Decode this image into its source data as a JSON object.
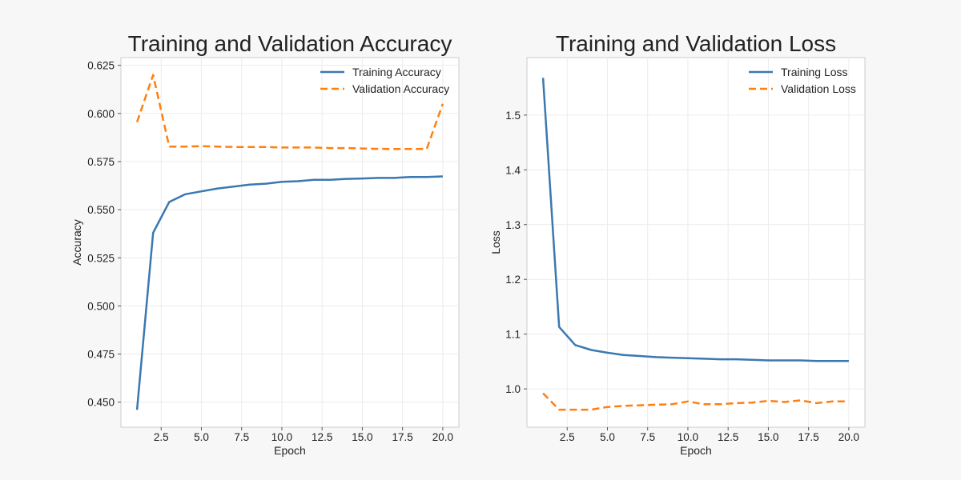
{
  "chart_data": [
    {
      "type": "line",
      "title": "Training and Validation Accuracy",
      "xlabel": "Epoch",
      "ylabel": "Accuracy",
      "xlim": [
        0,
        21
      ],
      "ylim": [
        0.437,
        0.629
      ],
      "xticks": [
        2.5,
        5.0,
        7.5,
        10.0,
        12.5,
        15.0,
        17.5,
        20.0
      ],
      "xtick_labels": [
        "2.5",
        "5.0",
        "7.5",
        "10.0",
        "12.5",
        "15.0",
        "17.5",
        "20.0"
      ],
      "yticks": [
        0.45,
        0.475,
        0.5,
        0.525,
        0.55,
        0.575,
        0.6,
        0.625
      ],
      "ytick_labels": [
        "0.450",
        "0.475",
        "0.500",
        "0.525",
        "0.550",
        "0.575",
        "0.600",
        "0.625"
      ],
      "grid": true,
      "legend_position": "top-right",
      "x": [
        1,
        2,
        3,
        4,
        5,
        6,
        7,
        8,
        9,
        10,
        11,
        12,
        13,
        14,
        15,
        16,
        17,
        18,
        19,
        20
      ],
      "series": [
        {
          "name": "Training Accuracy",
          "color": "#3a78b0",
          "dash": "solid",
          "values": [
            0.446,
            0.538,
            0.554,
            0.558,
            0.5595,
            0.561,
            0.562,
            0.563,
            0.5635,
            0.5645,
            0.5648,
            0.5655,
            0.5655,
            0.566,
            0.5662,
            0.5665,
            0.5665,
            0.567,
            0.567,
            0.5673
          ]
        },
        {
          "name": "Validation Accuracy",
          "color": "#ff7f0e",
          "dash": "dashed",
          "values": [
            0.5955,
            0.62,
            0.5828,
            0.5828,
            0.583,
            0.5828,
            0.5826,
            0.5826,
            0.5826,
            0.5823,
            0.5823,
            0.5823,
            0.582,
            0.582,
            0.5818,
            0.5816,
            0.5815,
            0.5815,
            0.5815,
            0.605
          ]
        }
      ]
    },
    {
      "type": "line",
      "title": "Training and Validation Loss",
      "xlabel": "Epoch",
      "ylabel": "Loss",
      "xlim": [
        0,
        21
      ],
      "ylim": [
        0.93,
        1.605
      ],
      "xticks": [
        2.5,
        5.0,
        7.5,
        10.0,
        12.5,
        15.0,
        17.5,
        20.0
      ],
      "xtick_labels": [
        "2.5",
        "5.0",
        "7.5",
        "10.0",
        "12.5",
        "15.0",
        "17.5",
        "20.0"
      ],
      "yticks": [
        1.0,
        1.1,
        1.2,
        1.3,
        1.4,
        1.5
      ],
      "ytick_labels": [
        "1.0",
        "1.1",
        "1.2",
        "1.3",
        "1.4",
        "1.5"
      ],
      "grid": true,
      "legend_position": "top-right",
      "x": [
        1,
        2,
        3,
        4,
        5,
        6,
        7,
        8,
        9,
        10,
        11,
        12,
        13,
        14,
        15,
        16,
        17,
        18,
        19,
        20
      ],
      "series": [
        {
          "name": "Training Loss",
          "color": "#3a78b0",
          "dash": "solid",
          "values": [
            1.568,
            1.113,
            1.08,
            1.071,
            1.066,
            1.062,
            1.06,
            1.058,
            1.057,
            1.056,
            1.055,
            1.054,
            1.054,
            1.053,
            1.052,
            1.052,
            1.052,
            1.051,
            1.051,
            1.051
          ]
        },
        {
          "name": "Validation Loss",
          "color": "#ff7f0e",
          "dash": "dashed",
          "values": [
            0.992,
            0.962,
            0.962,
            0.962,
            0.967,
            0.969,
            0.97,
            0.971,
            0.972,
            0.977,
            0.972,
            0.972,
            0.974,
            0.975,
            0.978,
            0.976,
            0.979,
            0.974,
            0.977,
            0.977
          ]
        }
      ]
    }
  ]
}
